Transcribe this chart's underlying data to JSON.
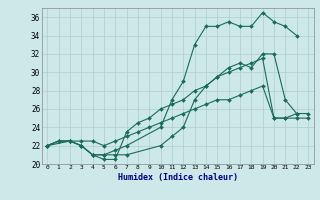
{
  "title": "",
  "xlabel": "Humidex (Indice chaleur)",
  "background_color": "#cce8e8",
  "grid_color": "#b0cccc",
  "line_color": "#1a6b5a",
  "xlim": [
    -0.5,
    23.5
  ],
  "ylim": [
    20,
    37
  ],
  "yticks": [
    20,
    22,
    24,
    26,
    28,
    30,
    32,
    34,
    36
  ],
  "xticks": [
    0,
    1,
    2,
    3,
    4,
    5,
    6,
    7,
    8,
    9,
    10,
    11,
    12,
    13,
    14,
    15,
    16,
    17,
    18,
    19,
    20,
    21,
    22,
    23
  ],
  "series": [
    {
      "x": [
        0,
        1,
        2,
        3,
        4,
        5,
        6,
        7,
        10,
        11,
        12,
        13,
        14,
        15,
        16,
        17,
        18,
        19,
        20,
        21,
        22
      ],
      "y": [
        22,
        22.5,
        22.5,
        22,
        21,
        21,
        21,
        21,
        22,
        23,
        24,
        27,
        28.5,
        29.5,
        30.5,
        31,
        30.5,
        32,
        32,
        27,
        25.5
      ]
    },
    {
      "x": [
        0,
        1,
        2,
        3,
        4,
        5,
        6,
        7,
        8,
        9,
        10,
        11,
        12,
        13,
        14,
        15,
        16,
        17,
        18,
        19,
        20,
        21,
        22,
        23
      ],
      "y": [
        22,
        22.5,
        22.5,
        22.5,
        22.5,
        22,
        22.5,
        23,
        23.5,
        24,
        24.5,
        25,
        25.5,
        26,
        26.5,
        27,
        27,
        27.5,
        28,
        28.5,
        25,
        25,
        25,
        25
      ]
    },
    {
      "x": [
        0,
        1,
        2,
        3,
        4,
        5,
        6,
        7,
        8,
        9,
        10,
        11,
        12,
        13,
        14,
        15,
        16,
        17,
        18,
        19,
        20,
        21,
        22,
        23
      ],
      "y": [
        22,
        22.5,
        22.5,
        22,
        21,
        20.5,
        20.5,
        23.5,
        24.5,
        25,
        26,
        26.5,
        27,
        28,
        28.5,
        29.5,
        30,
        30.5,
        31,
        31.5,
        25,
        25,
        25.5,
        25.5
      ]
    },
    {
      "x": [
        0,
        2,
        3,
        4,
        5,
        6,
        7,
        10,
        11,
        12,
        13,
        14,
        15,
        16,
        17,
        18,
        19,
        20,
        21,
        22
      ],
      "y": [
        22,
        22.5,
        22,
        21,
        21,
        21.5,
        22,
        24,
        27,
        29,
        33,
        35,
        35,
        35.5,
        35,
        35,
        36.5,
        35.5,
        35,
        34
      ]
    }
  ]
}
